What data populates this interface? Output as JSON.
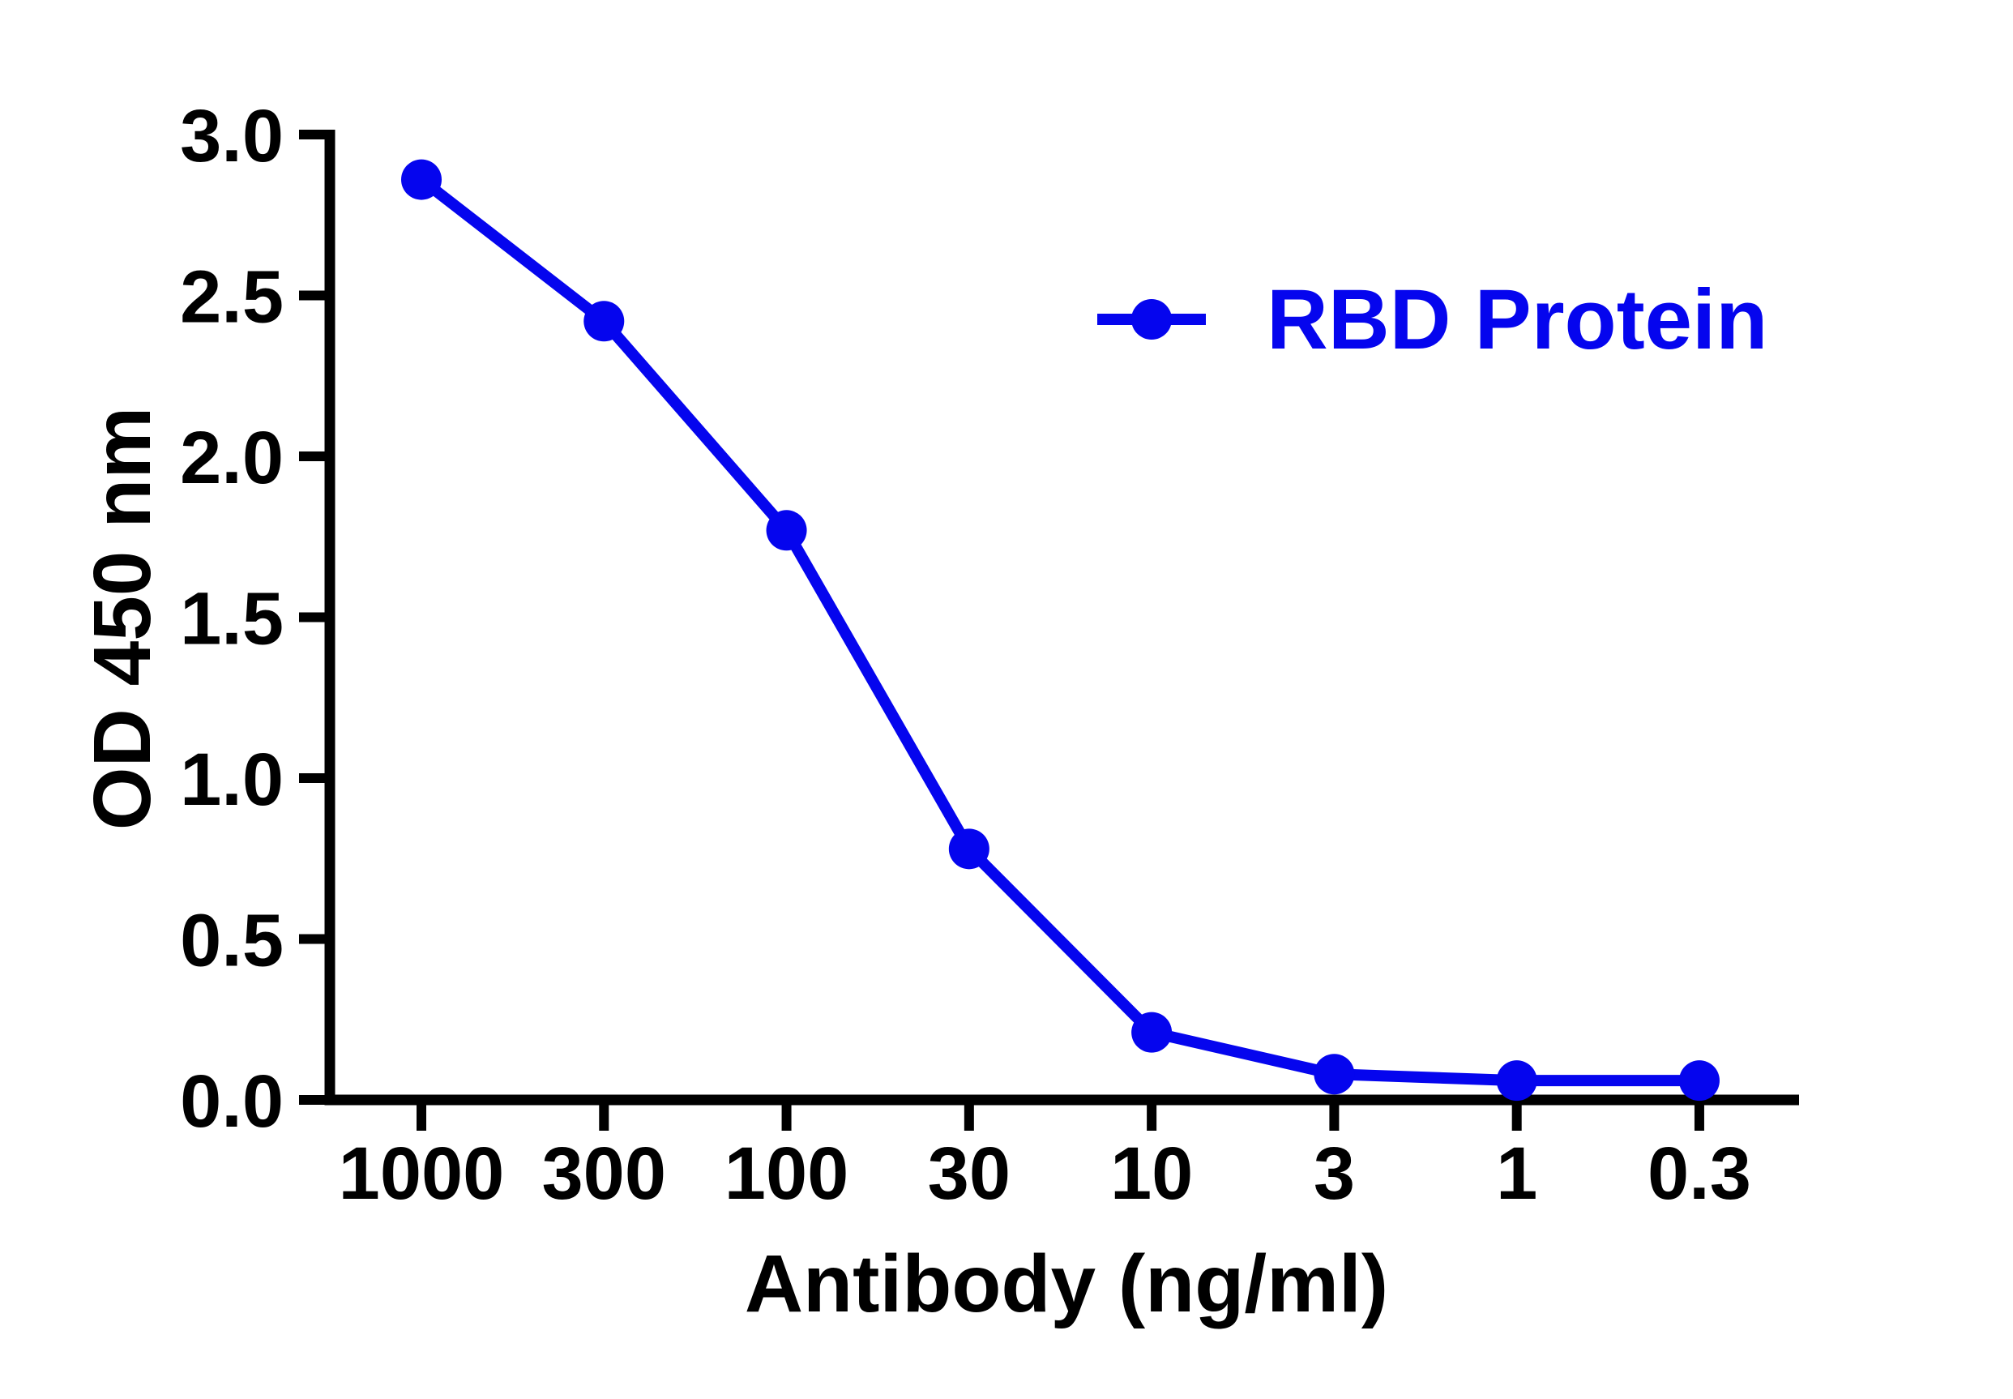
{
  "figure": {
    "background": "#ffffff",
    "axis_color": "#000000",
    "accent_blue": "#0505ee"
  },
  "legend": {
    "label": "RBD Protein",
    "position": "upper right inside"
  },
  "chart_data": {
    "type": "line",
    "title": "",
    "xlabel": "Antibody (ng/ml)",
    "ylabel": "OD 450 nm",
    "x_scale": "log-descending",
    "x": [
      1000,
      300,
      100,
      30,
      10,
      3,
      1,
      0.3
    ],
    "x_tick_labels": [
      "1000",
      "300",
      "100",
      "30",
      "10",
      "3",
      "1",
      "0.3"
    ],
    "y_ticks": [
      0.0,
      0.5,
      1.0,
      1.5,
      2.0,
      2.5,
      3.0
    ],
    "y_tick_labels": [
      "0.0",
      "0.5",
      "1.0",
      "1.5",
      "2.0",
      "2.5",
      "3.0"
    ],
    "ylim": [
      0.0,
      3.0
    ],
    "grid": false,
    "legend_position": "upper right inside",
    "series": [
      {
        "name": "RBD Protein",
        "color": "#0505ee",
        "marker": "circle",
        "values": [
          2.86,
          2.42,
          1.77,
          0.78,
          0.21,
          0.08,
          0.06,
          0.06
        ]
      }
    ]
  }
}
